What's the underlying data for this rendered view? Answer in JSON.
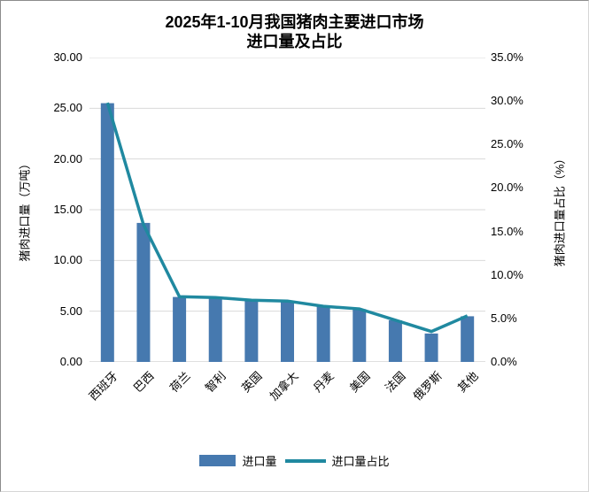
{
  "chart": {
    "title_line1": "2025年1-10月我国猪肉主要进口市场",
    "title_line2": "进口量及占比",
    "left_axis_title": "猪肉进口量（万吨）",
    "right_axis_title": "猪肉进口量占比（%）",
    "left_ticks": [
      "0.00",
      "5.00",
      "10.00",
      "15.00",
      "20.00",
      "25.00",
      "30.00"
    ],
    "right_ticks": [
      "0.0%",
      "5.0%",
      "10.0%",
      "15.0%",
      "20.0%",
      "25.0%",
      "30.0%",
      "35.0%"
    ],
    "legend": [
      {
        "label": "进口量",
        "swatch": "bar-swatch"
      },
      {
        "label": "进口量占比",
        "swatch": "line-swatch"
      }
    ],
    "colors": {
      "bar": "#4679af",
      "line": "#2089a0",
      "grid": "#d9d9d9",
      "axis": "#bfbfbf",
      "text": "#000000"
    }
  },
  "chart_data": {
    "type": "bar",
    "title": "2025年1-10月我国猪肉主要进口市场进口量及占比",
    "categories": [
      "西班牙",
      "巴西",
      "荷兰",
      "智利",
      "英国",
      "加拿大",
      "丹麦",
      "美国",
      "法国",
      "俄罗斯",
      "其他"
    ],
    "series": [
      {
        "name": "进口量",
        "type": "bar",
        "axis": "left",
        "unit": "万吨",
        "values": [
          25.5,
          13.7,
          6.4,
          6.3,
          6.1,
          6.0,
          5.5,
          5.2,
          4.1,
          2.8,
          4.5
        ]
      },
      {
        "name": "进口量占比",
        "type": "line",
        "axis": "right",
        "unit": "%",
        "values": [
          29.8,
          15.8,
          7.5,
          7.4,
          7.1,
          7.0,
          6.4,
          6.1,
          4.8,
          3.5,
          5.3
        ]
      }
    ],
    "ylabel_left": "猪肉进口量（万吨）",
    "ylabel_right": "猪肉进口量占比（%）",
    "ylim_left": [
      0,
      30
    ],
    "ylim_right": [
      0,
      35
    ],
    "grid": true,
    "legend_position": "bottom"
  }
}
